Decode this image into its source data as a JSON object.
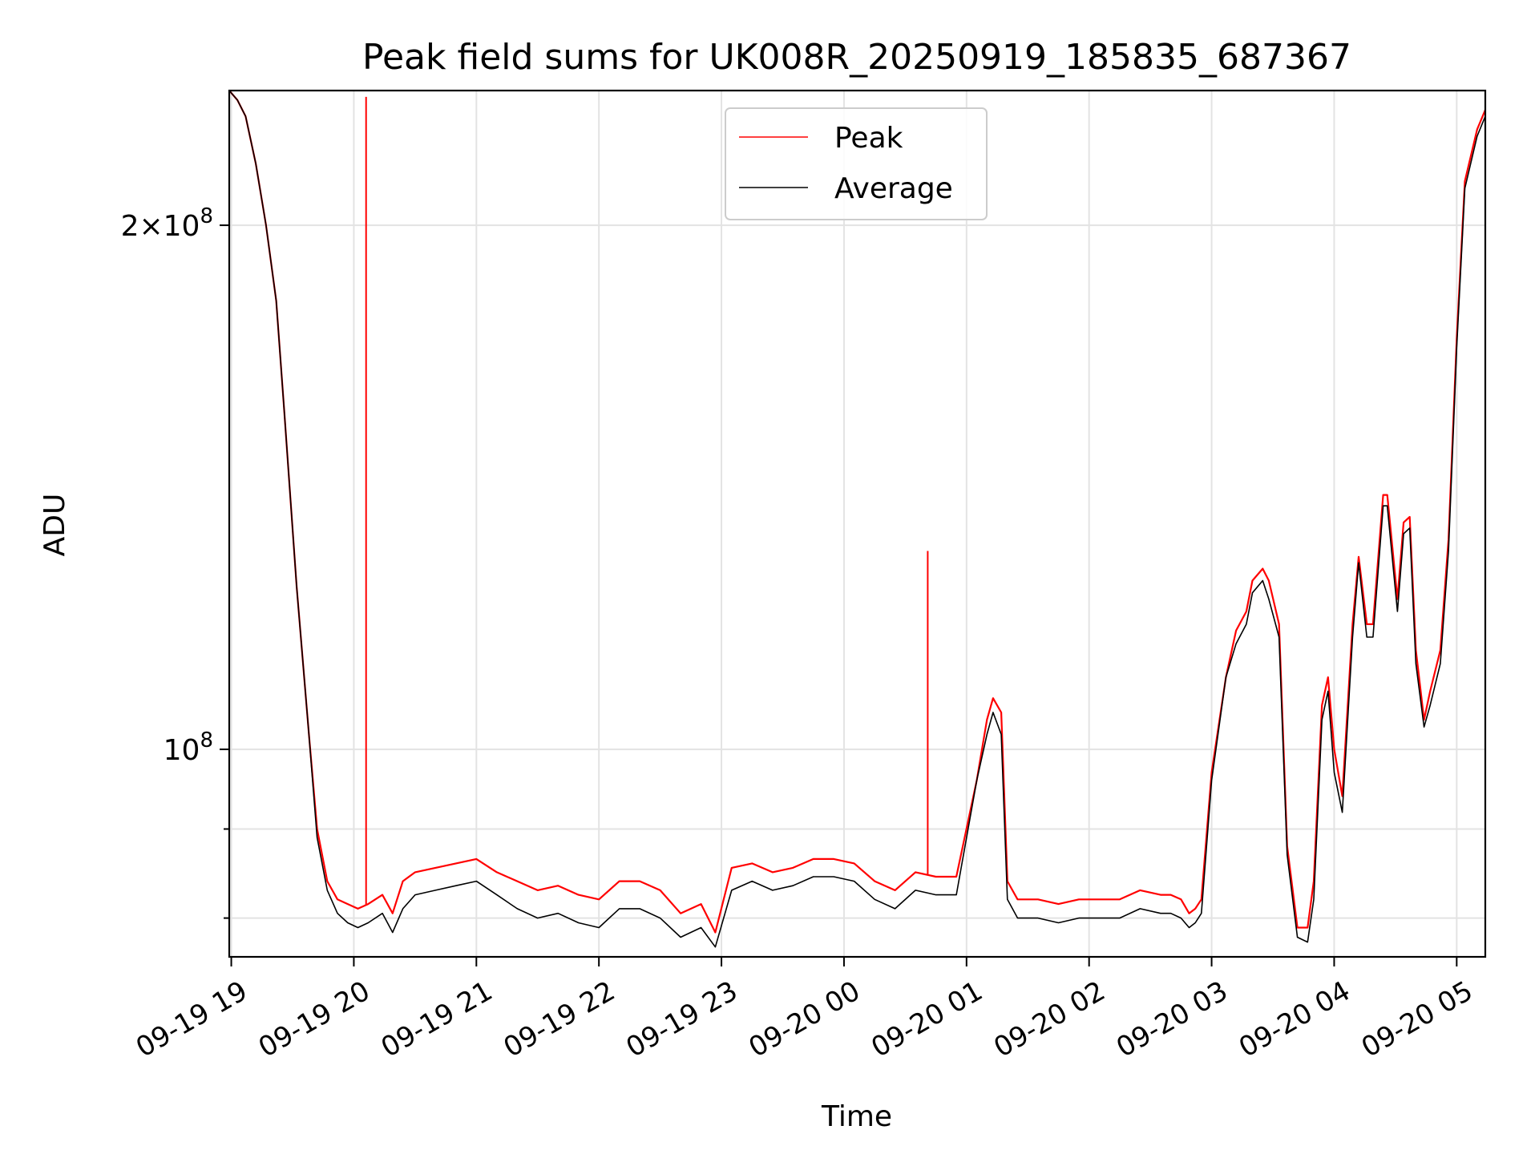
{
  "chart_data": {
    "type": "line",
    "title": "Peak field sums for UK008R_20250919_185835_687367",
    "xlabel": "Time",
    "ylabel": "ADU",
    "yscale": "log",
    "ylim": [
      76000000,
      239000000
    ],
    "xlim": [
      "2025-09-19 18:59",
      "2025-09-20 05:14"
    ],
    "grid": true,
    "legend": "upper center",
    "x_ticks": [
      "09-19 19",
      "09-19 20",
      "09-19 21",
      "09-19 22",
      "09-19 23",
      "09-20 00",
      "09-20 01",
      "09-20 02",
      "09-20 03",
      "09-20 04",
      "09-20 05"
    ],
    "y_ticks": [
      {
        "value": 200000000,
        "base": "2×10",
        "exp": "8"
      },
      {
        "value": 100000000,
        "base": "10",
        "exp": "8"
      }
    ],
    "y_minor_ticks": [
      80000000,
      90000000
    ],
    "x": [
      "18:59",
      "19:03",
      "19:07",
      "19:12",
      "19:17",
      "19:22",
      "19:26",
      "19:32",
      "19:38",
      "19:42",
      "19:47",
      "19:52",
      "19:57",
      "20:02",
      "20:07",
      "20:14",
      "20:19",
      "20:24",
      "20:30",
      "20:40",
      "20:50",
      "21:00",
      "21:10",
      "21:20",
      "21:30",
      "21:40",
      "21:50",
      "22:00",
      "22:10",
      "22:20",
      "22:30",
      "22:40",
      "22:50",
      "22:57",
      "23:05",
      "23:15",
      "23:25",
      "23:35",
      "23:45",
      "23:55",
      "00:05",
      "00:15",
      "00:25",
      "00:35",
      "00:45",
      "00:55",
      "01:05",
      "01:10",
      "01:13",
      "01:17",
      "01:20",
      "01:25",
      "01:35",
      "01:45",
      "01:55",
      "02:05",
      "02:15",
      "02:25",
      "02:35",
      "02:40",
      "02:45",
      "02:49",
      "02:52",
      "02:55",
      "03:00",
      "03:07",
      "03:12",
      "03:17",
      "03:20",
      "03:25",
      "03:28",
      "03:33",
      "03:37",
      "03:42",
      "03:47",
      "03:50",
      "03:54",
      "03:57",
      "04:00",
      "04:04",
      "04:09",
      "04:12",
      "04:16",
      "04:19",
      "04:24",
      "04:26",
      "04:31",
      "04:34",
      "04:37",
      "04:40",
      "04:44",
      "04:47",
      "04:52",
      "04:56",
      "05:00",
      "05:04",
      "05:10",
      "05:14"
    ],
    "series": [
      {
        "name": "Peak",
        "color": "#ff0000",
        "values": [
          239,
          236,
          231,
          217,
          200,
          181,
          156,
          124,
          102,
          90,
          84,
          82,
          81.5,
          81,
          81.5,
          82.5,
          80.5,
          84,
          85,
          85.5,
          86,
          86.5,
          85,
          84,
          83,
          83.5,
          82.5,
          82,
          84,
          84,
          83,
          80.5,
          81.5,
          78.5,
          85.5,
          86,
          85,
          85.5,
          86.5,
          86.5,
          86,
          84,
          83,
          85,
          84.5,
          84.5,
          96,
          104,
          107,
          105,
          84,
          82,
          82,
          81.5,
          82,
          82,
          82,
          83,
          82.5,
          82.5,
          82,
          80.5,
          81,
          82,
          97,
          110,
          117,
          120,
          125,
          127,
          125,
          118,
          88,
          79,
          79,
          84,
          106,
          110,
          100,
          94,
          118,
          129,
          118,
          118,
          140,
          140,
          122,
          135,
          136,
          114,
          104,
          108,
          114,
          132,
          172,
          212,
          227,
          233
        ],
        "spikes": [
          {
            "x": "20:06",
            "value": 237
          },
          {
            "x": "00:41",
            "value": 130
          }
        ]
      },
      {
        "name": "Average",
        "color": "#000000",
        "values": [
          239,
          236,
          231,
          217,
          200,
          181,
          156,
          124,
          102,
          89,
          83,
          80.5,
          79.5,
          79,
          79.5,
          80.5,
          78.5,
          81,
          82.5,
          83,
          83.5,
          84,
          82.5,
          81,
          80,
          80.5,
          79.5,
          79,
          81,
          81,
          80,
          78,
          79,
          77,
          83,
          84,
          83,
          83.5,
          84.5,
          84.5,
          84,
          82,
          81,
          83,
          82.5,
          82.5,
          96,
          102,
          105,
          102,
          82,
          80,
          80,
          79.5,
          80,
          80,
          80,
          81,
          80.5,
          80.5,
          80,
          79,
          79.5,
          80.5,
          96,
          110,
          115,
          118,
          123,
          125,
          122,
          116,
          87,
          78,
          77.5,
          82,
          104,
          108,
          97,
          92,
          116,
          128,
          116,
          116,
          138,
          138,
          120,
          133,
          134,
          112,
          103,
          106,
          112,
          130,
          170,
          210,
          225,
          231
        ]
      }
    ]
  }
}
